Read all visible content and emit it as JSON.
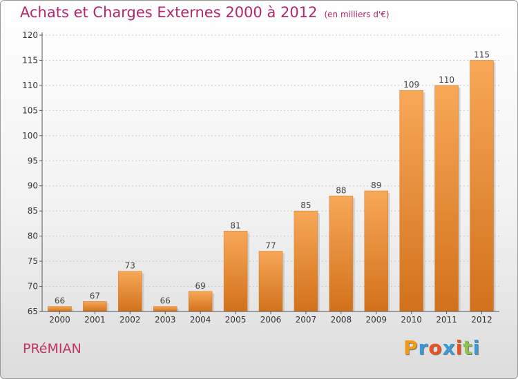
{
  "title": "Achats et Charges Externes 2000 à 2012",
  "subtitle": "(en milliers d'€)",
  "commune": "PRéMIAN",
  "brand": {
    "letters": [
      "P",
      "r",
      "o",
      "x",
      "i",
      "t",
      "i"
    ],
    "colors": [
      "#f39a16",
      "#3a9ad9",
      "#e8531f",
      "#3a9ad9",
      "#e8531f",
      "#8bc34a",
      "#3a9ad9"
    ]
  },
  "colors": {
    "bar_top": "#f7a857",
    "bar_bottom": "#d2711c",
    "title": "#b5266b"
  },
  "chart_data": {
    "type": "bar",
    "categories": [
      "2000",
      "2001",
      "2002",
      "2003",
      "2004",
      "2005",
      "2006",
      "2007",
      "2008",
      "2009",
      "2010",
      "2011",
      "2012"
    ],
    "values": [
      66,
      67,
      73,
      66,
      69,
      81,
      77,
      85,
      88,
      89,
      109,
      110,
      115
    ],
    "ylim": [
      65,
      120
    ],
    "yticks": [
      65,
      70,
      75,
      80,
      85,
      90,
      95,
      100,
      105,
      110,
      115,
      120
    ],
    "grid": true,
    "data_labels": true
  }
}
